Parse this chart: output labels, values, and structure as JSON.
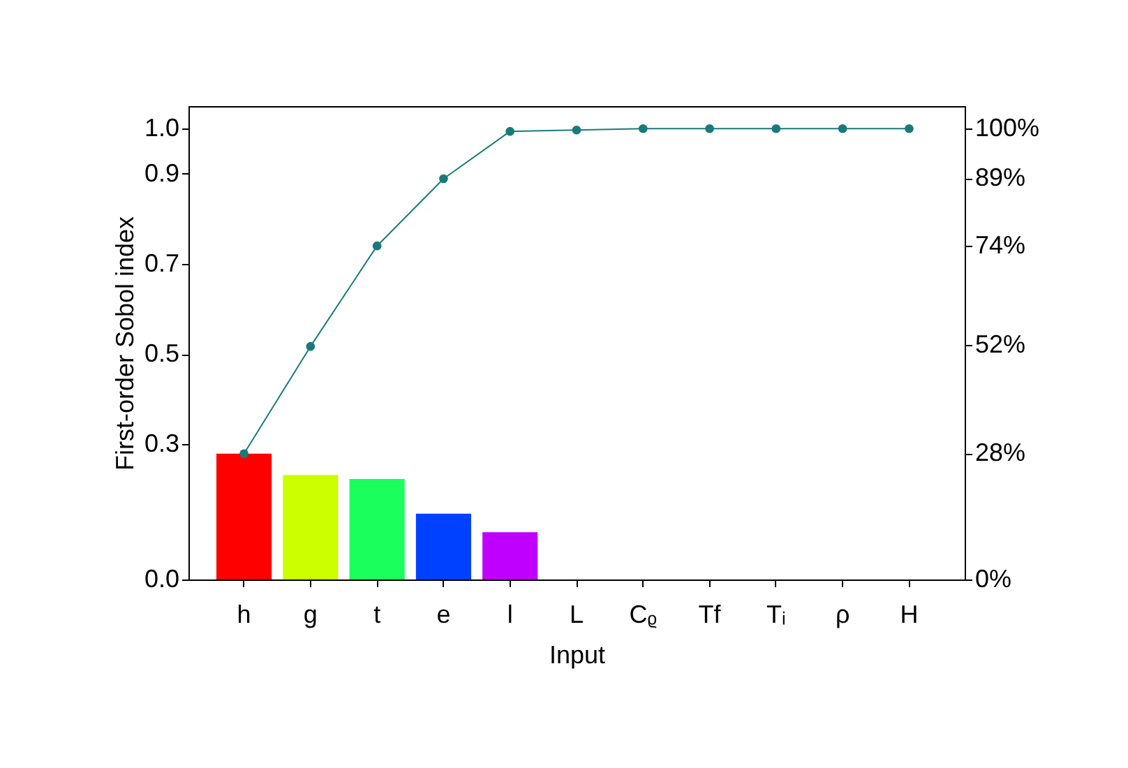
{
  "chart_data": {
    "type": "bar",
    "xlabel": "Input",
    "ylabel": "First-order Sobol index",
    "categories": [
      "h",
      "g",
      "t",
      "e",
      "l",
      "L",
      "Cᵨ",
      "Tf",
      "Tᵢ",
      "ρ",
      "H"
    ],
    "series": [
      {
        "colors": [
          "#ff0000",
          "#ccff00",
          "#1aff5c",
          "#0040ff",
          "#bf00ff",
          "#808080",
          "#808080",
          "#808080",
          "#808080",
          "#808080",
          "#808080"
        ],
        "values": [
          0.279,
          0.232,
          0.223,
          0.146,
          0.105,
          0,
          0,
          0,
          0,
          0,
          0
        ]
      },
      {
        "type": "line",
        "axis": "y2",
        "color": "#1a7a7a",
        "marker": "circle",
        "line_style": "solid",
        "values": [
          27.9,
          51.7,
          74.0,
          88.9,
          99.4,
          99.7,
          100,
          100,
          100,
          100,
          100
        ]
      }
    ],
    "ylim": [
      0,
      1.05
    ],
    "yticks": [
      {
        "value": 0,
        "label": "0.0"
      },
      {
        "value": 0.3,
        "label": "0.3"
      },
      {
        "value": 0.5,
        "label": "0.5"
      },
      {
        "value": 0.7,
        "label": "0.7"
      },
      {
        "value": 0.9,
        "label": "0.9"
      },
      {
        "value": 1,
        "label": "1.0"
      }
    ],
    "y2lim": [
      0,
      105
    ],
    "y2ticks": [
      {
        "value": 0,
        "label": "0%"
      },
      {
        "value": 28,
        "label": "28%"
      },
      {
        "value": 52,
        "label": "52%"
      },
      {
        "value": 74,
        "label": "74%"
      },
      {
        "value": 89,
        "label": "89%"
      },
      {
        "value": 100,
        "label": "100%"
      }
    ],
    "grid": false
  }
}
